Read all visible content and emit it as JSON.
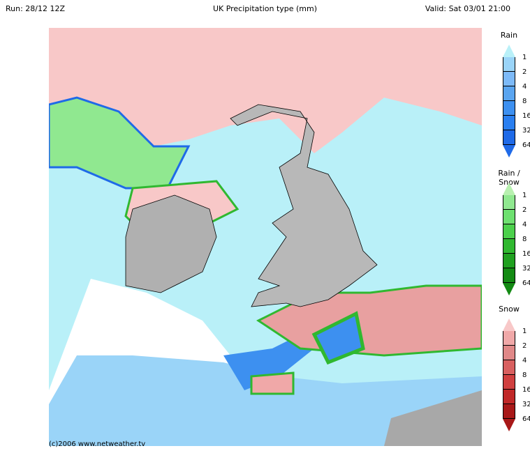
{
  "header": {
    "run": "Run: 28/12 12Z",
    "title": "UK Precipitation type (mm)",
    "valid": "Valid: Sat 03/01 21:00"
  },
  "footer": {
    "copyright": "(c)2006 www.netweather.tv"
  },
  "legends": [
    {
      "title": "Rain",
      "labels": [
        "1",
        "2",
        "4",
        "8",
        "16",
        "32",
        "64"
      ],
      "colors": [
        "#b9f0f8",
        "#9ad4f8",
        "#7dbaf8",
        "#5aa5f0",
        "#3d90f0",
        "#2a7ff0",
        "#1f6ae8"
      ]
    },
    {
      "title": "Rain / Snow",
      "labels": [
        "1",
        "2",
        "4",
        "8",
        "16",
        "32",
        "64"
      ],
      "colors": [
        "#b8f0b0",
        "#90e890",
        "#6ee070",
        "#4cd04c",
        "#30b830",
        "#20a020",
        "#138a13"
      ]
    },
    {
      "title": "Snow",
      "labels": [
        "1",
        "2",
        "4",
        "8",
        "16",
        "32",
        "64"
      ],
      "colors": [
        "#f8c8c8",
        "#f0a8a8",
        "#e08888",
        "#d86060",
        "#d04040",
        "#c02828",
        "#a81818"
      ]
    }
  ],
  "map_colors": {
    "sea": "#ffffff",
    "land": "#b8b8b8",
    "rain_light": "#b9f0f8",
    "rain_mid": "#7dbaf8",
    "rain_heavy": "#3d90f0",
    "mix": "#90e890",
    "snow": "#f8c8c8",
    "snow_mid": "#e08888"
  }
}
